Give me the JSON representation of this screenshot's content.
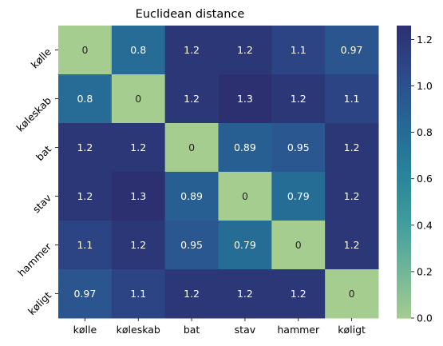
{
  "chart_data": {
    "type": "heatmap",
    "title": "Euclidean distance",
    "xlabel": "",
    "ylabel": "",
    "x_categories": [
      "kølle",
      "køleskab",
      "bat",
      "stav",
      "hammer",
      "køligt"
    ],
    "y_categories": [
      "kølle",
      "køleskab",
      "bat",
      "stav",
      "hammer",
      "køligt"
    ],
    "values": [
      [
        0,
        0.8,
        1.2,
        1.2,
        1.1,
        0.97
      ],
      [
        0.8,
        0,
        1.2,
        1.3,
        1.2,
        1.1
      ],
      [
        1.2,
        1.2,
        0,
        0.89,
        0.95,
        1.2
      ],
      [
        1.2,
        1.3,
        0.89,
        0,
        0.79,
        1.2
      ],
      [
        1.1,
        1.2,
        0.95,
        0.79,
        0,
        1.2
      ],
      [
        0.97,
        1.1,
        1.2,
        1.2,
        1.2,
        0
      ]
    ],
    "labels": [
      [
        "0",
        "0.8",
        "1.2",
        "1.2",
        "1.1",
        "0.97"
      ],
      [
        "0.8",
        "0",
        "1.2",
        "1.3",
        "1.2",
        "1.1"
      ],
      [
        "1.2",
        "1.2",
        "0",
        "0.89",
        "0.95",
        "1.2"
      ],
      [
        "1.2",
        "1.3",
        "0.89",
        "0",
        "0.79",
        "1.2"
      ],
      [
        "1.1",
        "1.2",
        "0.95",
        "0.79",
        "0",
        "1.2"
      ],
      [
        "0.97",
        "1.1",
        "1.2",
        "1.2",
        "1.2",
        "0"
      ]
    ],
    "colorbar": {
      "vmin": 0,
      "vmax": 1.26,
      "ticks": [
        0.0,
        0.2,
        0.4,
        0.6,
        0.8,
        1.0,
        1.2
      ],
      "tick_labels": [
        "0.0",
        "0.2",
        "0.4",
        "0.6",
        "0.8",
        "1.0",
        "1.2"
      ],
      "colormap": "crest"
    },
    "colormap_stops": [
      "#a5cd90",
      "#6fb59a",
      "#3e9c9c",
      "#26839a",
      "#266695",
      "#2d4a8a",
      "#2c3071"
    ],
    "grid": false,
    "legend": "colorbar-right"
  }
}
